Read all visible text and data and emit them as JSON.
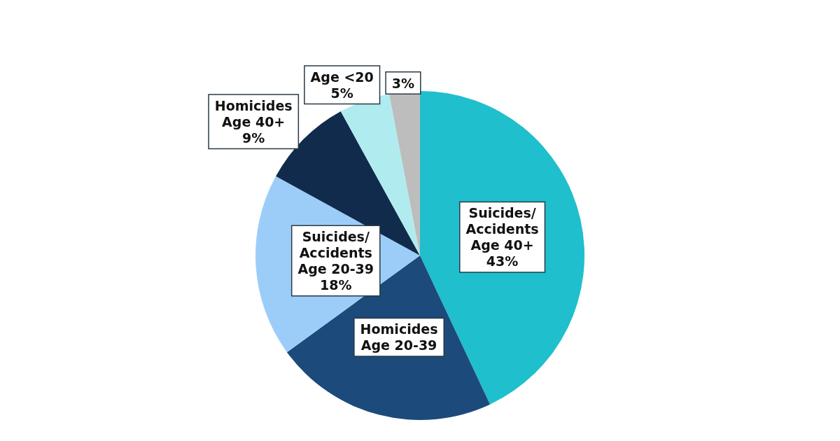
{
  "chart_data": {
    "type": "pie",
    "categories": [
      "Suicides/\nAccidents\nAge 40+",
      "Homicides\nAge 20-39",
      "Suicides/\nAccidents\nAge 20-39",
      "Homicides\nAge 40+",
      "Age <20",
      null
    ],
    "values": [
      43,
      22,
      18,
      9,
      5,
      3
    ],
    "colors": [
      "#1fbfcd",
      "#1b4a7b",
      "#9ccdf9",
      "#112b4c",
      "#b0ecef",
      "#bdbdbd"
    ],
    "value_labels": [
      "43%",
      null,
      "18%",
      "9%",
      "5%",
      "3%"
    ]
  }
}
